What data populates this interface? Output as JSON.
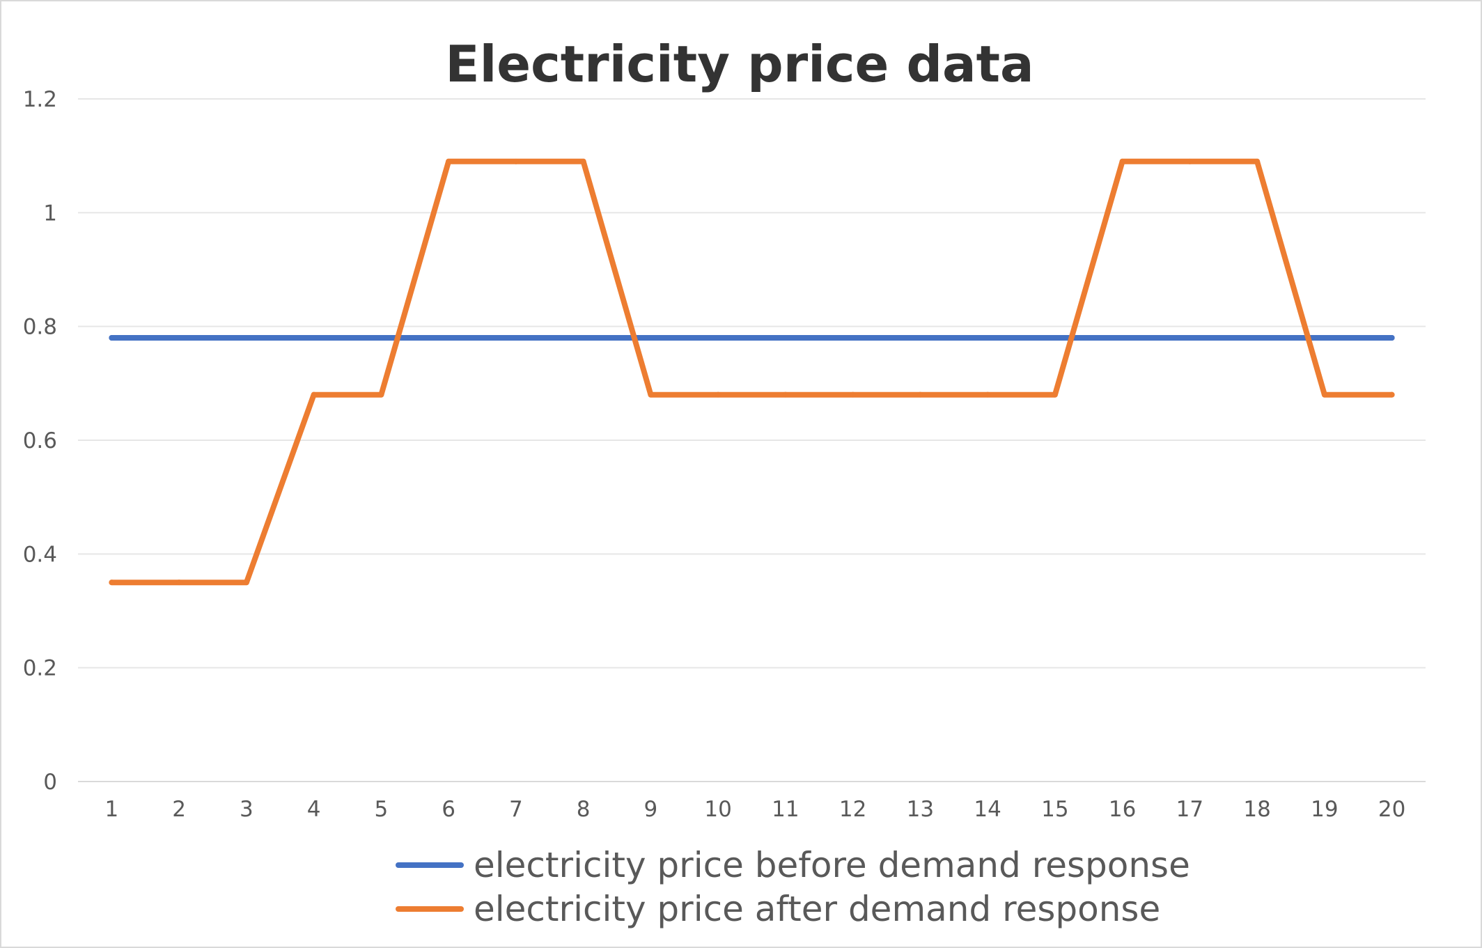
{
  "chart_data": {
    "type": "line",
    "title": "Electricity price data",
    "xlabel": "",
    "ylabel": "",
    "x": [
      1,
      2,
      3,
      4,
      5,
      6,
      7,
      8,
      9,
      10,
      11,
      12,
      13,
      14,
      15,
      16,
      17,
      18,
      19,
      20
    ],
    "ylim": [
      0,
      1.2
    ],
    "yticks": [
      0,
      0.2,
      0.4,
      0.6,
      0.8,
      1,
      1.2
    ],
    "grid": true,
    "legend": "bottom",
    "series": [
      {
        "name": "electricity price before demand response",
        "color": "#4472c4",
        "values": [
          0.78,
          0.78,
          0.78,
          0.78,
          0.78,
          0.78,
          0.78,
          0.78,
          0.78,
          0.78,
          0.78,
          0.78,
          0.78,
          0.78,
          0.78,
          0.78,
          0.78,
          0.78,
          0.78,
          0.78
        ]
      },
      {
        "name": "electricity price after demand response",
        "color": "#ed7d31",
        "values": [
          0.35,
          0.35,
          0.35,
          0.68,
          0.68,
          1.09,
          1.09,
          1.09,
          0.68,
          0.68,
          0.68,
          0.68,
          0.68,
          0.68,
          0.68,
          1.09,
          1.09,
          1.09,
          0.68,
          0.68
        ]
      }
    ]
  }
}
